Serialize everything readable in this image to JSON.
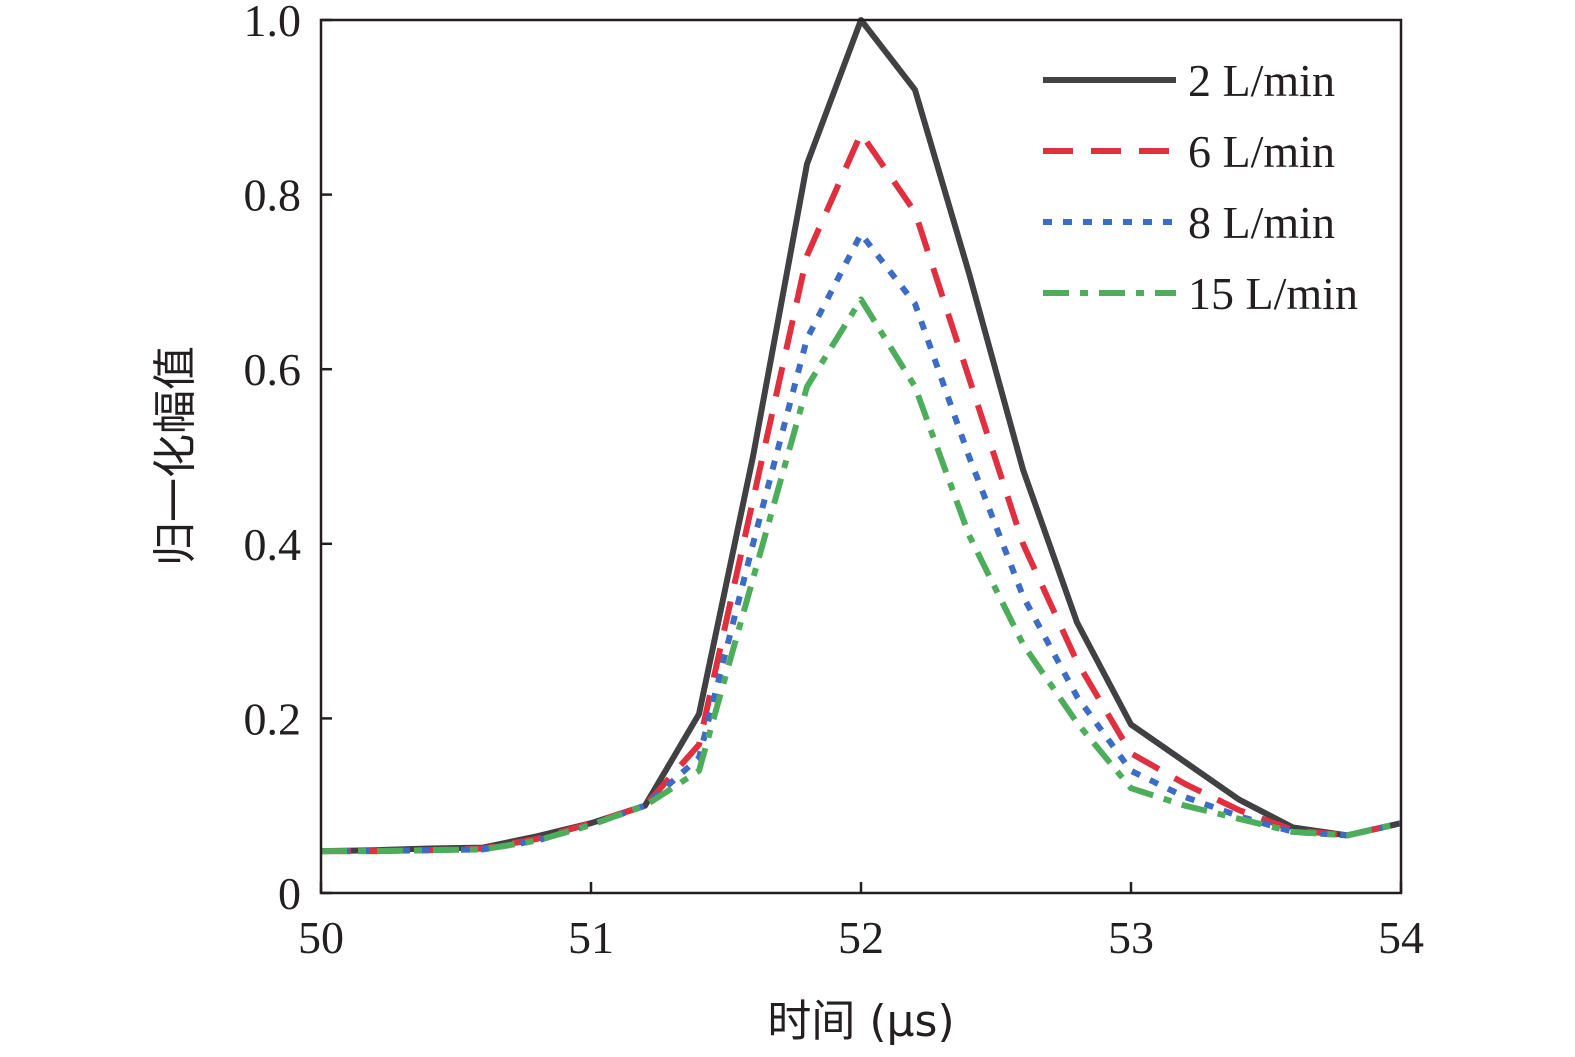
{
  "chart_data": {
    "type": "line",
    "xlabel": "时间 (μs)",
    "ylabel": "归一化幅值",
    "xlim": [
      50,
      54
    ],
    "ylim": [
      0,
      1.0
    ],
    "xticks": [
      "50",
      "51",
      "52",
      "53",
      "54"
    ],
    "yticks": [
      "0",
      "0.2",
      "0.4",
      "0.6",
      "0.8",
      "1.0"
    ],
    "grid": false,
    "legend_position": "top-right",
    "series": [
      {
        "name": "2 L/min",
        "color": "#414042",
        "dash": "solid",
        "x": [
          50,
          50.2,
          50.4,
          50.6,
          50.8,
          51,
          51.2,
          51.4,
          51.6,
          51.8,
          52,
          52.2,
          52.4,
          52.6,
          52.8,
          53,
          53.2,
          53.4,
          53.6,
          53.8,
          54
        ],
        "y": [
          0.048,
          0.049,
          0.051,
          0.052,
          0.065,
          0.08,
          0.1,
          0.205,
          0.5,
          0.835,
          1.0,
          0.92,
          0.71,
          0.485,
          0.31,
          0.193,
          0.15,
          0.107,
          0.075,
          0.066,
          0.08
        ]
      },
      {
        "name": "6 L/min",
        "color": "#e0303f",
        "dash": "dash",
        "x": [
          50,
          50.2,
          50.4,
          50.6,
          50.8,
          51,
          51.2,
          51.4,
          51.6,
          51.8,
          52,
          52.2,
          52.4,
          52.6,
          52.8,
          53,
          53.2,
          53.4,
          53.6,
          53.8,
          54
        ],
        "y": [
          0.048,
          0.048,
          0.049,
          0.051,
          0.062,
          0.08,
          0.1,
          0.17,
          0.45,
          0.73,
          0.87,
          0.78,
          0.59,
          0.4,
          0.265,
          0.16,
          0.125,
          0.095,
          0.072,
          0.066,
          0.08
        ]
      },
      {
        "name": "8 L/min",
        "color": "#3d6cc4",
        "dash": "dot",
        "x": [
          50,
          50.2,
          50.4,
          50.6,
          50.8,
          51,
          51.2,
          51.4,
          51.6,
          51.8,
          52,
          52.2,
          52.4,
          52.6,
          52.8,
          53,
          53.2,
          53.4,
          53.6,
          53.8,
          54
        ],
        "y": [
          0.048,
          0.048,
          0.049,
          0.05,
          0.06,
          0.078,
          0.1,
          0.155,
          0.4,
          0.635,
          0.755,
          0.675,
          0.5,
          0.34,
          0.225,
          0.14,
          0.11,
          0.088,
          0.07,
          0.066,
          0.08
        ]
      },
      {
        "name": "15 L/min",
        "color": "#4ead5b",
        "dash": "dashdot",
        "x": [
          50,
          50.2,
          50.4,
          50.6,
          50.8,
          51,
          51.2,
          51.4,
          51.6,
          51.8,
          52,
          52.2,
          52.4,
          52.6,
          52.8,
          53,
          53.2,
          53.4,
          53.6,
          53.8,
          54
        ],
        "y": [
          0.048,
          0.048,
          0.049,
          0.05,
          0.06,
          0.078,
          0.1,
          0.14,
          0.36,
          0.58,
          0.68,
          0.58,
          0.41,
          0.285,
          0.195,
          0.12,
          0.1,
          0.085,
          0.07,
          0.066,
          0.08
        ]
      }
    ]
  }
}
